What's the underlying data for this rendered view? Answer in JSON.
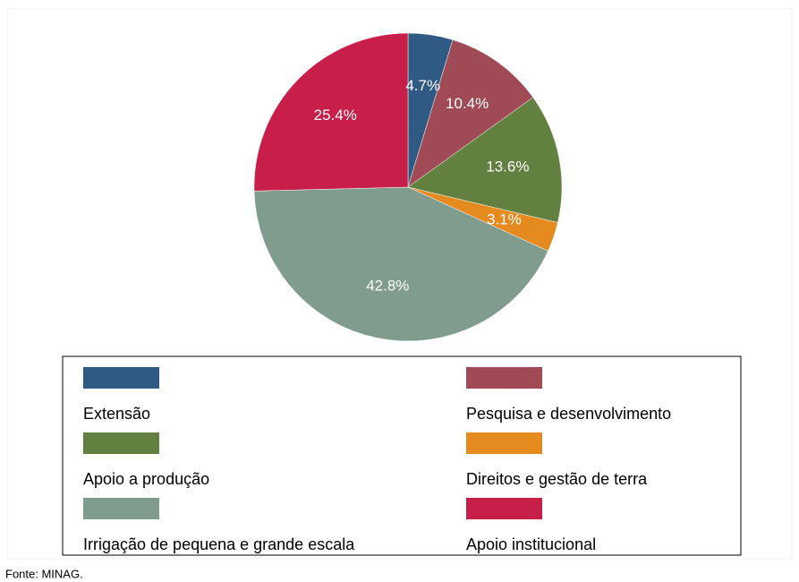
{
  "chart_data": {
    "type": "pie",
    "categories": [
      "Extensão",
      "Pesquisa e desenvolvimento",
      "Apoio a produção",
      "Direitos e gestão de terra",
      "Irrigação de pequena e grande escala",
      "Apoio institucional"
    ],
    "values": [
      4.7,
      10.4,
      13.6,
      3.1,
      42.8,
      25.4
    ],
    "value_labels": [
      "4.7%",
      "10.4%",
      "13.6%",
      "3.1%",
      "42.8%",
      "25.4%"
    ],
    "colors": [
      "#2e5a83",
      "#9f4a55",
      "#62803f",
      "#e58a1f",
      "#7f9c8f",
      "#c81f4a"
    ],
    "source": "Fonte:  MINAG."
  }
}
